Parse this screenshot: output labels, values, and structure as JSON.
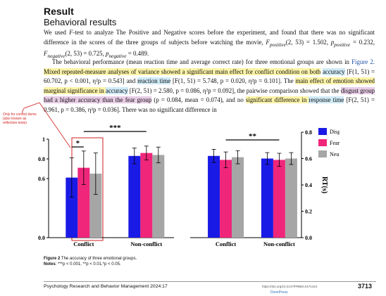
{
  "heading": "Result",
  "subheading": "Behavioral results",
  "para1": {
    "a": "We used ",
    "F": "F",
    "b": "-test to analyze The Positive and Negative scores before the experiment, and found that there was no significant difference in the scores of the three groups of subjects before watching the movie, ",
    "c": "F",
    "c_sub": "positive",
    "d": "(2, 53) = 1.502, ",
    "e": "p",
    "e_sub": "positive",
    "f": " = 0.232, ",
    "g": "F",
    "g_sub": "negative",
    "h": "(2, 53) = 0.725, ",
    "i": "p",
    "i_sub": "negative",
    "j": " = 0.489."
  },
  "para2": {
    "s1": "The behavioral performance (mean reaction time and average correct rate) for three emotional groups are shown in ",
    "fig_link": "Figure 2.",
    "s2": " Mixed repeated-measure analyses of variance showed a significant main effect for conflict condition on both",
    "s3": "accuracy",
    "s4": " [F(1, 51) = 60.702, p < 0.001, η²p = 0.543] and ",
    "s5": "reaction time",
    "s6": " [F(1, 51) = 5.748, p = 0.020, η²p = 0.101]. The",
    "s7": "main effect of emotion showed marginal significance in ",
    "s8": "accuracy",
    "s9": " [F(2, 51) = 2.580, p = 0.086, η²p = 0.092], the pairwise comparison showed that the ",
    "s10": "disgust group had a higher accuracy than the fear group",
    "s11": " (p = 0.084, mean = 0.074), and no",
    "s12": "significant difference in ",
    "s13": "response time",
    "s14": " [F(2, 51) = 0.961, p = 0.386, η²p = 0.036]. There was no significant difference in"
  },
  "annotation": "Only for conflict items (also known as reflection tests)",
  "chart_data": [
    {
      "type": "bar",
      "categories": [
        "Conflict",
        "Non-conflict"
      ],
      "series": [
        {
          "name": "Disgust",
          "values": [
            0.61,
            0.83
          ],
          "err": [
            0.2,
            0.08
          ]
        },
        {
          "name": "Fear",
          "values": [
            0.71,
            0.86
          ],
          "err": [
            0.17,
            0.07
          ]
        },
        {
          "name": "Neural",
          "values": [
            0.65,
            0.84
          ],
          "err": [
            0.21,
            0.08
          ]
        }
      ],
      "ylabel": "ACC",
      "ylim": [
        0.0,
        1.0
      ],
      "yticks": [
        "0.0",
        "0.6",
        "0.8",
        "1"
      ],
      "annotations": [
        "*",
        "***"
      ]
    },
    {
      "type": "bar",
      "categories": [
        "Conflict",
        "Non-conflict"
      ],
      "series": [
        {
          "name": "Disgust",
          "values": [
            0.62,
            0.6
          ],
          "err": [
            0.05,
            0.045
          ]
        },
        {
          "name": "Fear",
          "values": [
            0.59,
            0.59
          ],
          "err": [
            0.06,
            0.05
          ]
        },
        {
          "name": "Neural",
          "values": [
            0.61,
            0.6
          ],
          "err": [
            0.05,
            0.045
          ]
        }
      ],
      "ylabel": "RT(s)",
      "ylim": [
        0.0,
        0.8
      ],
      "yticks": [
        "0.0",
        "0.2",
        "0.4",
        "0.6",
        "0.8"
      ],
      "annotations": [
        "**"
      ]
    }
  ],
  "legend": [
    "Disgust",
    "Fear",
    "Neural"
  ],
  "colors": {
    "disgust": "#1a1ae6",
    "fear": "#f0267a",
    "neural": "#a6a6a6",
    "annotation": "#d21f1f"
  },
  "caption": {
    "title": "Figure 2",
    "title_rest": " The accuracy of three emotional groups.",
    "notes_label": "Notes",
    "notes_text": ": ***p < 0.001, **p < 0.01,*p < 0.05."
  },
  "footer": {
    "journal": "Psychology Research and Behavior Management 2024:17",
    "doi": "https://doi.org/10.2147/PRBM.S471424",
    "publisher": "DovePress",
    "page": "3713"
  }
}
